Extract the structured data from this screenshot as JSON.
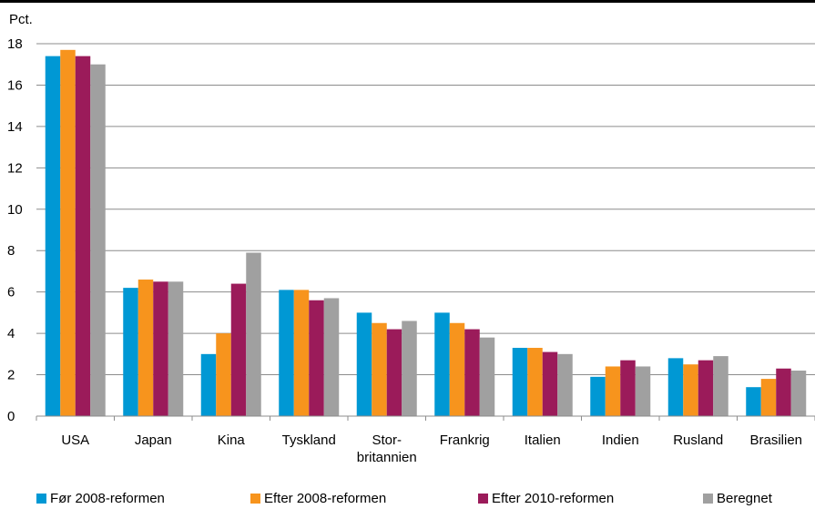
{
  "chart_data": {
    "type": "bar",
    "unit_label": "Pct.",
    "categories": [
      [
        "USA"
      ],
      [
        "Japan"
      ],
      [
        "Kina"
      ],
      [
        "Tyskland"
      ],
      [
        "Stor-",
        "britannien"
      ],
      [
        "Frankrig"
      ],
      [
        "Italien"
      ],
      [
        "Indien"
      ],
      [
        "Rusland"
      ],
      [
        "Brasilien"
      ]
    ],
    "series": [
      {
        "name": "Før 2008-reformen",
        "color": "#0098d4",
        "values": [
          17.4,
          6.2,
          3.0,
          6.1,
          5.0,
          5.0,
          3.3,
          1.9,
          2.8,
          1.4
        ]
      },
      {
        "name": "Efter 2008-reformen",
        "color": "#f7941d",
        "values": [
          17.7,
          6.6,
          4.0,
          6.1,
          4.5,
          4.5,
          3.3,
          2.4,
          2.5,
          1.8
        ]
      },
      {
        "name": "Efter 2010-reformen",
        "color": "#9b1b5a",
        "values": [
          17.4,
          6.5,
          6.4,
          5.6,
          4.2,
          4.2,
          3.1,
          2.7,
          2.7,
          2.3
        ]
      },
      {
        "name": "Beregnet",
        "color": "#a0a0a0",
        "values": [
          17.0,
          6.5,
          7.9,
          5.7,
          4.6,
          3.8,
          3.0,
          2.4,
          2.9,
          2.2
        ]
      }
    ],
    "ylim": [
      0,
      18
    ],
    "yticks": [
      0,
      2,
      4,
      6,
      8,
      10,
      12,
      14,
      16,
      18
    ],
    "grid": true,
    "legend": "bottom"
  }
}
